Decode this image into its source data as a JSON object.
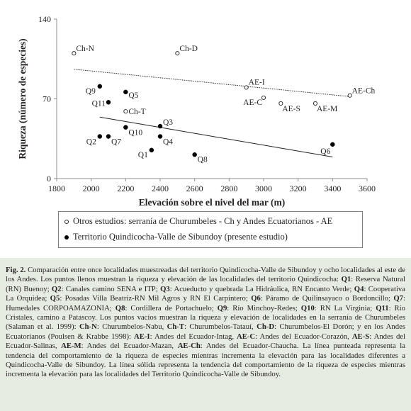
{
  "chart_data": {
    "type": "scatter",
    "xlabel": "Elevación sobre el nivel del mar (m)",
    "ylabel": "Riqueza (número de especies)",
    "xlim": [
      1800,
      3600
    ],
    "ylim": [
      0,
      140
    ],
    "xticks": [
      1800,
      2000,
      2200,
      2400,
      2600,
      2800,
      3000,
      3200,
      3400,
      3600
    ],
    "yticks": [
      0,
      70,
      140
    ],
    "grid": false,
    "legend_position": "bottom",
    "series": [
      {
        "name": "Otros estudios: serranía de Churumbeles - Ch y Andes Ecuatorianos - AE",
        "marker": "open-circle",
        "trendline": "dotted",
        "trend": [
          [
            1900,
            96
          ],
          [
            3500,
            72
          ]
        ],
        "points": [
          {
            "label": "Ch-N",
            "x": 1900,
            "y": 110
          },
          {
            "label": "Ch-D",
            "x": 2500,
            "y": 110
          },
          {
            "label": "Ch-T",
            "x": 2200,
            "y": 59
          },
          {
            "label": "AE-I",
            "x": 2900,
            "y": 80
          },
          {
            "label": "AE-C",
            "x": 3000,
            "y": 71
          },
          {
            "label": "AE-S",
            "x": 3100,
            "y": 66
          },
          {
            "label": "AE-M",
            "x": 3300,
            "y": 66
          },
          {
            "label": "AE-Ch",
            "x": 3500,
            "y": 73
          }
        ]
      },
      {
        "name": "Territorio Quindicocha-Valle de Sibundoy (presente estudio)",
        "marker": "filled-circle",
        "trendline": "solid",
        "trend": [
          [
            2050,
            54
          ],
          [
            3400,
            19
          ]
        ],
        "points": [
          {
            "label": "Q1",
            "x": 2350,
            "y": 25
          },
          {
            "label": "Q2",
            "x": 2050,
            "y": 37
          },
          {
            "label": "Q3",
            "x": 2400,
            "y": 46
          },
          {
            "label": "Q4",
            "x": 2400,
            "y": 37
          },
          {
            "label": "Q5",
            "x": 2200,
            "y": 76
          },
          {
            "label": "Q6",
            "x": 3400,
            "y": 30
          },
          {
            "label": "Q7",
            "x": 2100,
            "y": 37
          },
          {
            "label": "Q8",
            "x": 2600,
            "y": 21
          },
          {
            "label": "Q9",
            "x": 2050,
            "y": 81
          },
          {
            "label": "Q10",
            "x": 2200,
            "y": 45
          },
          {
            "label": "Q11",
            "x": 2100,
            "y": 67
          }
        ]
      }
    ]
  },
  "legend": {
    "items": [
      {
        "marker": "open",
        "text": "Otros estudios: serranía de Churumbeles - Ch  y Andes Ecuatorianos - AE"
      },
      {
        "marker": "filled",
        "text": "Territorio Quindicocha-Valle de Sibundoy (presente estudio)"
      }
    ]
  },
  "caption": {
    "prefix": "Fig. 2.",
    "text": " Comparación entre once localidades muestreadas del territorio Quindicocha-Valle de Sibundoy y ocho localidades al este de los Andes. Los puntos llenos muestran la riqueza y elevación de las localidades del territorio Quindicocha: ",
    "locality_entries": [
      [
        "Q1",
        ": Reserva Natural (RN) Buenoy; "
      ],
      [
        "Q2",
        ": Canales camino SENA e ITP; "
      ],
      [
        "Q3",
        ": Acueducto y quebrada La Hidráulica, RN Encanto Verde; "
      ],
      [
        "Q4",
        ": Cooperativa La Orquidea; "
      ],
      [
        "Q5",
        ": Posadas Villa Beatríz-RN Mil Agros y RN El Carpintero; "
      ],
      [
        "Q6",
        ": Páramo de Quilinsayaco o Bordoncillo; "
      ],
      [
        "Q7",
        ": Humedales CORPOAMAZONIA; "
      ],
      [
        "Q8",
        ": Cordillera de Portachuelo; "
      ],
      [
        "Q9",
        ": Río Minchoy-Redes; "
      ],
      [
        "Q10",
        ": RN La Virginia; "
      ],
      [
        "Q11",
        ": Río Cristales, camino a Patascoy. Los puntos vacíos muestran la riqueza y elevación de localidades en la serranía de Churumbeles (Salaman et al. 1999): "
      ],
      [
        "Ch-N",
        ": Churumbelos-Nabu, "
      ],
      [
        "Ch-T",
        ": Churumbelos-Tatauí, "
      ],
      [
        "Ch-D",
        ": Churumbelos-El Dorón; y en los Andes Ecuatorianos (Poulsen & Krabbe 1998): "
      ],
      [
        "AE-I",
        ": Andes del Ecuador-Intag, "
      ],
      [
        "AE-C",
        ": Andes del Ecuador-Corazón, "
      ],
      [
        "AE-S",
        ": Andes del Ecuador-Salinas, "
      ],
      [
        "AE-M",
        ": Andes del Ecuador-Mazan, "
      ],
      [
        "AE-Ch",
        ": Andes del Ecuador-Chaucha. La línea punteada representa la tendencia del comportamiento de la riqueza de especies mientras incrementa la elevación para las localidades diferentes a Quindicocha-Valle de Sibundoy. La línea sólida representa la tendencia del comportamiento de la riqueza de especies mientras incrementa la elevación para las localidades del Territorio Quindicocha-Valle de Sibundoy."
      ]
    ]
  }
}
